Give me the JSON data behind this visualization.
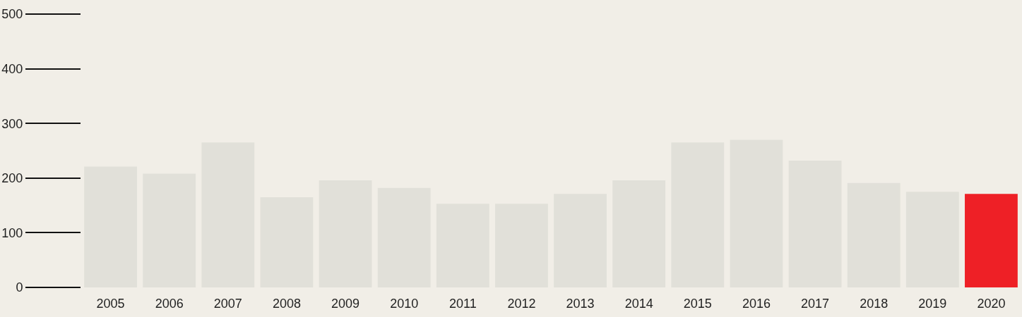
{
  "chart_data": {
    "type": "bar",
    "categories": [
      "2005",
      "2006",
      "2007",
      "2008",
      "2009",
      "2010",
      "2011",
      "2012",
      "2013",
      "2014",
      "2015",
      "2016",
      "2017",
      "2018",
      "2019",
      "2020"
    ],
    "values": [
      221,
      208,
      265,
      165,
      196,
      182,
      153,
      153,
      171,
      196,
      265,
      270,
      232,
      191,
      175,
      171
    ],
    "colors": [
      "#e1e0d9",
      "#e1e0d9",
      "#e1e0d9",
      "#e1e0d9",
      "#e1e0d9",
      "#e1e0d9",
      "#e1e0d9",
      "#e1e0d9",
      "#e1e0d9",
      "#e1e0d9",
      "#e1e0d9",
      "#e1e0d9",
      "#e1e0d9",
      "#e1e0d9",
      "#e1e0d9",
      "#ee2026"
    ],
    "ylim": [
      0,
      500
    ],
    "yticks": [
      0,
      100,
      200,
      300,
      400,
      500
    ],
    "grid": false
  }
}
